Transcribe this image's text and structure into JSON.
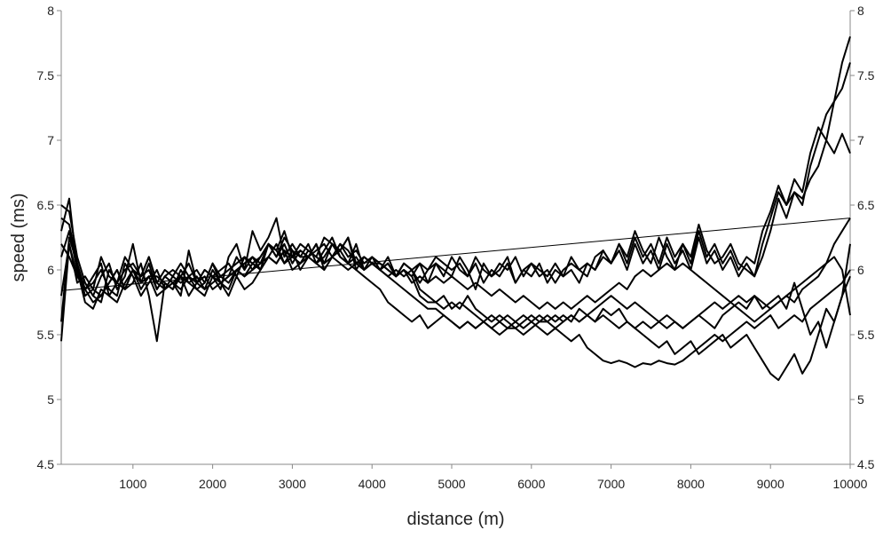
{
  "chart_data": {
    "type": "line",
    "title": "",
    "xlabel": "distance (m)",
    "ylabel": "speed (ms)",
    "xlim": [
      100,
      10000
    ],
    "ylim": [
      4.5,
      8
    ],
    "x_ticks": [
      1000,
      2000,
      3000,
      4000,
      5000,
      6000,
      7000,
      8000,
      9000,
      10000
    ],
    "y_ticks": [
      4.5,
      5,
      5.5,
      6,
      6.5,
      7,
      7.5,
      8
    ],
    "y_tick_labels": [
      "4.5",
      "5",
      "5.5",
      "6",
      "6.5",
      "7",
      "7.5",
      "8"
    ],
    "secondary_y_axis": true,
    "grid": false,
    "legend": "none",
    "line_color": "#000000",
    "x": [
      100,
      200,
      300,
      400,
      500,
      600,
      700,
      800,
      900,
      1000,
      1100,
      1200,
      1300,
      1400,
      1500,
      1600,
      1700,
      1800,
      1900,
      2000,
      2100,
      2200,
      2300,
      2400,
      2500,
      2600,
      2700,
      2800,
      2900,
      3000,
      3100,
      3200,
      3300,
      3400,
      3500,
      3600,
      3700,
      3800,
      3900,
      4000,
      4100,
      4200,
      4300,
      4400,
      4500,
      4600,
      4700,
      4800,
      4900,
      5000,
      5100,
      5200,
      5300,
      5400,
      5500,
      5600,
      5700,
      5800,
      5900,
      6000,
      6100,
      6200,
      6300,
      6400,
      6500,
      6600,
      6700,
      6800,
      6900,
      7000,
      7100,
      7200,
      7300,
      7400,
      7500,
      7600,
      7700,
      7800,
      7900,
      8000,
      8100,
      8200,
      8300,
      8400,
      8500,
      8600,
      8700,
      8800,
      8900,
      9000,
      9100,
      9200,
      9300,
      9400,
      9500,
      9600,
      9700,
      9800,
      9900,
      10000
    ],
    "series": [
      {
        "values": [
          6.5,
          6.45,
          6.1,
          5.9,
          5.8,
          5.95,
          6.05,
          5.85,
          5.95,
          6.2,
          5.9,
          6.05,
          5.85,
          5.95,
          5.9,
          5.8,
          6.15,
          5.9,
          6.0,
          5.95,
          5.85,
          6.1,
          6.2,
          6.0,
          6.3,
          6.15,
          6.25,
          6.4,
          6.1,
          6.2,
          6.1,
          6.2,
          6.05,
          6.15,
          6.25,
          6.1,
          6.05,
          6.2,
          6.0,
          6.1,
          6.05,
          6.0,
          5.95,
          6.0,
          5.95,
          6.05,
          5.9,
          6.05,
          5.95,
          6.1,
          6.0,
          5.95,
          6.05,
          5.9,
          6.0,
          5.95,
          6.05,
          5.9,
          6.0,
          5.95,
          6.05,
          5.9,
          6.0,
          5.95,
          6.0,
          5.9,
          6.05,
          6.0,
          6.1,
          6.05,
          6.15,
          6.0,
          6.2,
          6.05,
          6.15,
          6.0,
          6.2,
          6.05,
          6.15,
          6.0,
          6.25,
          6.05,
          6.15,
          6.0,
          6.1,
          5.95,
          6.05,
          5.95,
          6.1,
          6.3,
          6.55,
          6.4,
          6.6,
          6.5,
          6.8,
          7.0,
          7.2,
          7.3,
          7.6,
          7.8
        ]
      },
      {
        "values": [
          6.3,
          6.55,
          6.0,
          5.85,
          5.75,
          5.8,
          5.9,
          6.0,
          5.85,
          6.0,
          5.95,
          6.1,
          5.9,
          5.85,
          5.95,
          5.9,
          5.95,
          5.85,
          5.9,
          6.05,
          5.9,
          5.95,
          6.1,
          6.0,
          6.1,
          6.05,
          6.2,
          6.15,
          6.3,
          6.1,
          6.05,
          6.15,
          6.1,
          6.05,
          6.2,
          6.15,
          6.25,
          6.05,
          6.1,
          6.05,
          6.0,
          6.1,
          5.95,
          6.05,
          6.0,
          5.9,
          6.0,
          6.05,
          6.0,
          5.95,
          6.1,
          6.0,
          5.85,
          6.05,
          5.95,
          6.0,
          6.1,
          5.9,
          6.0,
          6.05,
          5.95,
          6.0,
          5.9,
          6.0,
          6.05,
          6.0,
          5.95,
          6.1,
          6.15,
          6.05,
          6.2,
          6.1,
          6.3,
          6.15,
          6.05,
          6.25,
          6.1,
          6.0,
          6.2,
          6.1,
          6.35,
          6.15,
          6.05,
          6.1,
          6.2,
          6.05,
          6.0,
          5.95,
          6.2,
          6.4,
          6.6,
          6.5,
          6.7,
          6.6,
          6.9,
          7.1,
          7.0,
          7.3,
          7.4,
          7.6
        ]
      },
      {
        "values": [
          6.2,
          6.1,
          5.95,
          5.85,
          5.95,
          6.05,
          5.8,
          5.9,
          6.0,
          6.05,
          5.95,
          6.0,
          5.85,
          5.95,
          6.0,
          5.95,
          6.05,
          5.9,
          6.0,
          5.95,
          6.0,
          6.05,
          5.95,
          6.1,
          6.05,
          6.1,
          6.2,
          6.1,
          6.25,
          6.15,
          6.1,
          6.1,
          6.15,
          6.2,
          6.1,
          6.2,
          6.15,
          6.05,
          6.1,
          6.05,
          6.05,
          6.0,
          5.95,
          6.0,
          5.95,
          5.8,
          5.75,
          5.75,
          5.7,
          5.75,
          5.7,
          5.8,
          5.7,
          5.65,
          5.6,
          5.65,
          5.6,
          5.55,
          5.6,
          5.65,
          5.6,
          5.6,
          5.65,
          5.6,
          5.65,
          5.6,
          5.65,
          5.6,
          5.65,
          5.6,
          5.55,
          5.6,
          5.55,
          5.6,
          5.55,
          5.6,
          5.55,
          5.6,
          5.55,
          5.6,
          5.65,
          5.6,
          5.55,
          5.65,
          5.7,
          5.75,
          5.7,
          5.8,
          5.7,
          5.75,
          5.8,
          5.7,
          5.9,
          5.7,
          5.5,
          5.6,
          5.4,
          5.6,
          5.8,
          6.2
        ]
      },
      {
        "values": [
          5.45,
          6.2,
          5.9,
          5.95,
          5.85,
          5.8,
          5.9,
          6.0,
          5.85,
          5.9,
          6.05,
          5.8,
          5.45,
          5.9,
          5.85,
          5.95,
          5.9,
          5.85,
          5.8,
          5.95,
          5.9,
          5.8,
          5.95,
          5.85,
          5.9,
          6.0,
          6.1,
          6.05,
          6.15,
          6.1,
          6.2,
          6.15,
          6.1,
          6.25,
          6.2,
          6.1,
          6.05,
          6.0,
          5.95,
          5.9,
          5.85,
          5.75,
          5.7,
          5.65,
          5.6,
          5.65,
          5.55,
          5.6,
          5.65,
          5.6,
          5.55,
          5.6,
          5.55,
          5.6,
          5.55,
          5.6,
          5.55,
          5.55,
          5.5,
          5.55,
          5.6,
          5.65,
          5.6,
          5.65,
          5.6,
          5.7,
          5.65,
          5.6,
          5.7,
          5.65,
          5.7,
          5.6,
          5.55,
          5.5,
          5.45,
          5.4,
          5.45,
          5.35,
          5.4,
          5.45,
          5.35,
          5.4,
          5.45,
          5.5,
          5.4,
          5.45,
          5.5,
          5.4,
          5.3,
          5.2,
          5.15,
          5.25,
          5.35,
          5.2,
          5.3,
          5.5,
          5.7,
          5.6,
          5.8,
          5.95
        ]
      },
      {
        "values": [
          5.6,
          6.25,
          6.05,
          5.85,
          5.9,
          6.0,
          5.85,
          5.8,
          6.05,
          5.95,
          5.8,
          5.9,
          6.0,
          5.85,
          5.9,
          5.95,
          5.8,
          5.9,
          5.95,
          5.85,
          5.9,
          5.95,
          6.0,
          6.05,
          6.1,
          6.0,
          6.2,
          6.15,
          6.05,
          6.1,
          6.15,
          6.1,
          6.05,
          6.1,
          6.2,
          6.15,
          6.05,
          6.1,
          6.0,
          6.05,
          6.0,
          5.95,
          5.9,
          5.85,
          5.8,
          5.75,
          5.7,
          5.7,
          5.65,
          5.6,
          5.55,
          5.6,
          5.55,
          5.6,
          5.55,
          5.5,
          5.55,
          5.6,
          5.55,
          5.6,
          5.55,
          5.5,
          5.55,
          5.5,
          5.45,
          5.5,
          5.4,
          5.35,
          5.3,
          5.28,
          5.3,
          5.28,
          5.25,
          5.28,
          5.27,
          5.3,
          5.28,
          5.27,
          5.3,
          5.35,
          5.4,
          5.45,
          5.5,
          5.45,
          5.5,
          5.55,
          5.6,
          5.55,
          5.6,
          5.65,
          5.55,
          5.6,
          5.65,
          5.6,
          5.7,
          5.75,
          5.8,
          5.85,
          5.9,
          6.0
        ]
      },
      {
        "values": [
          6.1,
          6.3,
          6.0,
          5.75,
          5.7,
          5.85,
          5.8,
          5.75,
          5.9,
          6.0,
          5.85,
          5.95,
          5.8,
          5.85,
          5.9,
          5.85,
          5.95,
          5.9,
          5.85,
          5.9,
          5.95,
          5.9,
          6.0,
          5.95,
          6.05,
          6.0,
          6.1,
          6.05,
          6.15,
          6.0,
          6.05,
          6.1,
          6.05,
          6.0,
          6.1,
          6.05,
          6.0,
          6.05,
          6.0,
          6.05,
          6.0,
          6.05,
          5.95,
          6.0,
          5.9,
          5.95,
          5.9,
          5.95,
          5.9,
          5.95,
          5.9,
          5.85,
          5.9,
          5.85,
          5.8,
          5.85,
          5.8,
          5.75,
          5.8,
          5.75,
          5.7,
          5.75,
          5.7,
          5.75,
          5.7,
          5.75,
          5.8,
          5.75,
          5.8,
          5.85,
          5.9,
          5.85,
          5.95,
          6.0,
          5.95,
          6.0,
          6.05,
          6.0,
          6.05,
          6.0,
          5.95,
          5.9,
          5.85,
          5.8,
          5.75,
          5.7,
          5.65,
          5.6,
          5.65,
          5.7,
          5.75,
          5.8,
          5.85,
          5.9,
          5.95,
          6.0,
          6.05,
          6.1,
          6.0,
          5.65
        ]
      },
      {
        "values": [
          6.4,
          6.35,
          6.05,
          5.8,
          5.85,
          6.1,
          5.95,
          5.9,
          6.1,
          6.0,
          5.95,
          6.1,
          5.9,
          6.0,
          5.95,
          6.05,
          5.95,
          6.0,
          5.9,
          6.05,
          5.95,
          6.0,
          6.05,
          6.1,
          6.0,
          6.1,
          6.2,
          6.1,
          6.2,
          6.05,
          6.15,
          6.1,
          6.2,
          6.05,
          6.1,
          6.2,
          6.1,
          6.15,
          6.05,
          6.1,
          6.0,
          6.05,
          5.95,
          6.05,
          6.0,
          6.05,
          6.0,
          6.1,
          6.05,
          6.0,
          6.05,
          5.95,
          6.1,
          6.0,
          5.95,
          6.05,
          6.0,
          6.1,
          5.95,
          6.05,
          6.0,
          5.95,
          6.05,
          5.95,
          6.1,
          6.0,
          6.05,
          6.0,
          6.15,
          6.05,
          6.2,
          6.05,
          6.25,
          6.1,
          6.2,
          6.05,
          6.25,
          6.1,
          6.2,
          6.05,
          6.3,
          6.1,
          6.2,
          6.05,
          6.15,
          6.0,
          6.1,
          6.05,
          6.3,
          6.45,
          6.65,
          6.5,
          6.6,
          6.55,
          6.7,
          6.8,
          7.0,
          6.9,
          7.05,
          6.9
        ]
      },
      {
        "values": [
          5.8,
          6.2,
          5.95,
          5.9,
          5.8,
          5.75,
          6.0,
          5.9,
          5.85,
          6.0,
          5.9,
          5.95,
          5.95,
          5.9,
          5.85,
          6.0,
          5.9,
          5.95,
          5.85,
          6.0,
          5.9,
          5.85,
          6.0,
          5.95,
          6.0,
          6.05,
          6.1,
          6.2,
          6.05,
          6.15,
          6.0,
          6.1,
          6.2,
          6.0,
          6.1,
          6.15,
          6.25,
          6.0,
          6.1,
          6.05,
          6.0,
          5.95,
          6.0,
          5.95,
          6.0,
          5.85,
          5.8,
          5.75,
          5.8,
          5.7,
          5.75,
          5.7,
          5.65,
          5.6,
          5.65,
          5.6,
          5.65,
          5.6,
          5.65,
          5.6,
          5.65,
          5.6,
          5.55,
          5.6,
          5.65,
          5.6,
          5.65,
          5.7,
          5.75,
          5.8,
          5.75,
          5.7,
          5.75,
          5.7,
          5.65,
          5.6,
          5.65,
          5.6,
          5.55,
          5.6,
          5.65,
          5.7,
          5.75,
          5.7,
          5.75,
          5.8,
          5.75,
          5.8,
          5.75,
          5.7,
          5.75,
          5.8,
          5.75,
          5.85,
          5.9,
          5.95,
          6.05,
          6.2,
          6.3,
          6.4
        ]
      }
    ],
    "trendline": {
      "x": [
        100,
        10000
      ],
      "values": [
        5.84,
        6.4
      ]
    }
  }
}
